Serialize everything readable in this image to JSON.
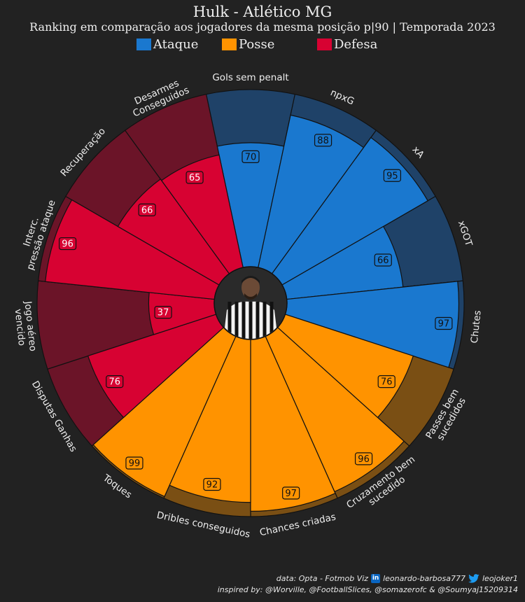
{
  "header": {
    "title": "Hulk - Atlético MG",
    "subtitle": "Ranking em comparação aos jogadores da mesma posição p|90 | Temporada 2023"
  },
  "legend": [
    {
      "label": "Ataque",
      "color": "#1a78cf"
    },
    {
      "label": "Posse",
      "color": "#ff9300"
    },
    {
      "label": "Defesa",
      "color": "#d70232"
    }
  ],
  "chart_data": {
    "type": "polar-bar",
    "rlim": [
      0,
      100
    ],
    "categories": [
      "Gols sem penalt",
      "npxG",
      "xA",
      "xGOT",
      "Chutes",
      "Passes bem sucedidos",
      "Cruzamento bem sucedido",
      "Chances criadas",
      "Dribles conseguidos",
      "Toques",
      "Disputas Ganhas",
      "Jogo aéreo vencido",
      "Interc. pressão ataque",
      "Recuperação",
      "Desarmes Conseguidos"
    ],
    "values": [
      70,
      88,
      95,
      66,
      97,
      76,
      96,
      97,
      92,
      99,
      76,
      37,
      96,
      66,
      65
    ],
    "groups": [
      "Ataque",
      "Ataque",
      "Ataque",
      "Ataque",
      "Ataque",
      "Posse",
      "Posse",
      "Posse",
      "Posse",
      "Posse",
      "Defesa",
      "Defesa",
      "Defesa",
      "Defesa",
      "Defesa"
    ],
    "label_lines": [
      [
        "Gols sem penalt"
      ],
      [
        "npxG"
      ],
      [
        "xA"
      ],
      [
        "xGOT"
      ],
      [
        "Chutes"
      ],
      [
        "Passes bem",
        "sucedidos"
      ],
      [
        "Cruzamento bem",
        "sucedido"
      ],
      [
        "Chances criadas"
      ],
      [
        "Dribles conseguidos"
      ],
      [
        "Toques"
      ],
      [
        "Disputas Ganhas"
      ],
      [
        "Jogo aéreo",
        "vencido"
      ],
      [
        "Interc.",
        "pressão ataque"
      ],
      [
        "Recuperação"
      ],
      [
        "Desarmes",
        "Conseguidos"
      ]
    ],
    "colors": {
      "Ataque": {
        "fill": "#1a78cf",
        "bg": "#1f4268",
        "value_text": "#111111"
      },
      "Posse": {
        "fill": "#ff9300",
        "bg": "#7a4f14",
        "value_text": "#111111"
      },
      "Defesa": {
        "fill": "#d70232",
        "bg": "#6b1428",
        "value_text": "#ffffff"
      }
    }
  },
  "player_photo": {
    "alt": "Hulk"
  },
  "footer": {
    "line1_left": "data: Opta - Fotmob Viz",
    "linkedin": "leonardo-barbosa777",
    "twitter": "leojoker1",
    "line2": "inspired by: @Worville, @FootballSlices, @somazerofc & @Soumyaj15209314"
  }
}
